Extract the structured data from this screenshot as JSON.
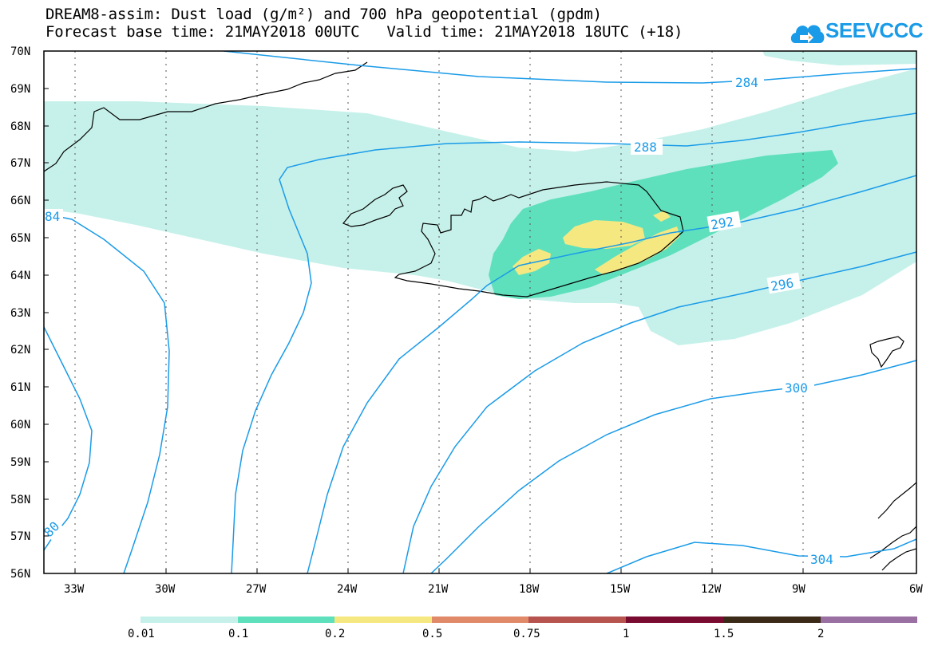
{
  "title": {
    "line1": "DREAM8-assim: Dust load (g/m²) and 700 hPa geopotential (gpdm)",
    "base": "Forecast base time: 21MAY2018 00UTC",
    "valid": "Valid time: 21MAY2018 18UTC (+18)"
  },
  "logo": {
    "text": "SEEVCCC",
    "color": "#1a9be8"
  },
  "axes": {
    "lat_labels": [
      "70N",
      "69N",
      "68N",
      "67N",
      "66N",
      "65N",
      "64N",
      "63N",
      "62N",
      "61N",
      "60N",
      "59N",
      "58N",
      "57N",
      "56N"
    ],
    "lon_labels": [
      "33W",
      "30W",
      "27W",
      "24W",
      "21W",
      "18W",
      "15W",
      "12W",
      "9W",
      "6W"
    ]
  },
  "contour_labels": [
    "284",
    "288",
    "292",
    "296",
    "300",
    "304",
    "84",
    "80"
  ],
  "colorbar": {
    "labels": [
      "0.01",
      "0.1",
      "0.2",
      "0.5",
      "0.75",
      "1",
      "1.5",
      "2"
    ],
    "colors": [
      "#c6f1ea",
      "#5fe0bd",
      "#f6e880",
      "#e08a6a",
      "#b85450",
      "#7a0b30",
      "#3c2a18",
      "#9a6fa2"
    ]
  },
  "colors": {
    "contour": "#1a9be8",
    "dust_01": "#c6f1ea",
    "dust_1": "#5fe0bd",
    "dust_2": "#f6e880"
  }
}
